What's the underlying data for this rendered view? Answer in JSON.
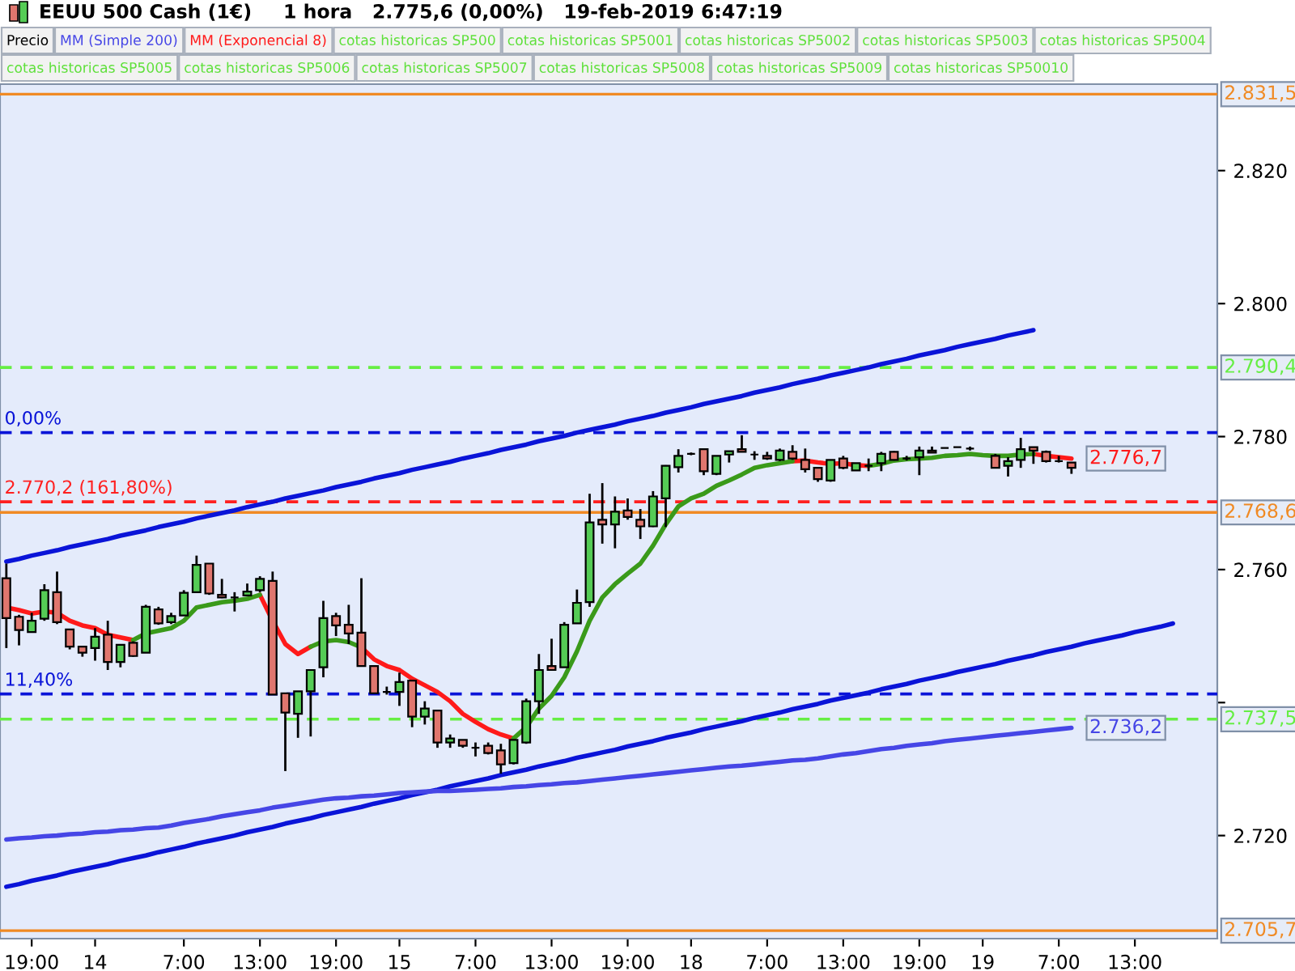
{
  "chart_data": {
    "type": "candlestick",
    "title": "EEUU 500 Cash (1€)",
    "subtitle": "1 hora   2.775,6 (0,00%)   19-feb-2019 6:47:19",
    "legend": "top",
    "categories": [
      null,
      null,
      "19:00",
      null,
      null,
      null,
      null,
      "14",
      null,
      null,
      null,
      null,
      null,
      null,
      "7:00",
      null,
      null,
      null,
      null,
      null,
      "13:00",
      null,
      null,
      null,
      null,
      null,
      "19:00",
      null,
      null,
      null,
      null,
      "15",
      null,
      null,
      null,
      null,
      null,
      "7:00",
      null,
      null,
      null,
      null,
      null,
      "13:00",
      null,
      null,
      null,
      null,
      null,
      "19:00",
      null,
      null,
      null,
      null,
      "18",
      null,
      null,
      null,
      null,
      null,
      "7:00",
      null,
      null,
      null,
      null,
      null,
      "13:00",
      null,
      null,
      null,
      null,
      null,
      "19:00",
      null,
      null,
      null,
      null,
      "19",
      null,
      null,
      null,
      null,
      null,
      "7:00",
      null,
      null,
      null,
      null,
      null,
      "13:00",
      null,
      null,
      null,
      null,
      null,
      null
    ],
    "ylim": [
      2704.5,
      2833
    ],
    "yticks": [
      {
        "value": 2720,
        "label": "2.720"
      },
      {
        "value": 2740,
        "label": null
      },
      {
        "value": 2760,
        "label": "2.760"
      },
      {
        "value": 2780,
        "label": "2.780"
      },
      {
        "value": 2800,
        "label": "2.800"
      },
      {
        "value": 2820,
        "label": "2.820"
      }
    ],
    "series": [
      {
        "type": "line",
        "color": "#0a14d8",
        "values": [
          2761.2,
          2761.6,
          2762.1,
          2762.5,
          2762.9,
          2763.4,
          2763.8,
          2764.2,
          2764.6,
          2765.1,
          2765.5,
          2765.9,
          2766.4,
          2766.8,
          2767.2,
          2767.7,
          2768.1,
          2768.5,
          2768.9,
          2769.4,
          2769.8,
          2770.2,
          2770.7,
          2771.1,
          2771.5,
          2771.9,
          2772.4,
          2772.8,
          2773.2,
          2773.7,
          2774.1,
          2774.5,
          2775.0,
          2775.4,
          2775.8,
          2776.2,
          2776.7,
          2777.1,
          2777.5,
          2778.0,
          2778.4,
          2778.8,
          2779.3,
          2779.7,
          2780.1,
          2780.6,
          2781.0,
          2781.4,
          2781.8,
          2782.3,
          2782.7,
          2783.1,
          2783.6,
          2784.0,
          2784.4,
          2784.9,
          2785.3,
          2785.7,
          2786.1,
          2786.6,
          2787.0,
          2787.4,
          2787.9,
          2788.3,
          2788.7,
          2789.2,
          2789.6,
          2790.0,
          2790.4,
          2790.9,
          2791.3,
          2791.7,
          2792.2,
          2792.6,
          2793.0,
          2793.5,
          2793.9,
          2794.3,
          2794.7,
          2795.2,
          2795.6,
          2796.0,
          null,
          null,
          null,
          null,
          null,
          null,
          null,
          null,
          null,
          null,
          null,
          null,
          null,
          null
        ]
      },
      {
        "type": "line",
        "color": "#0a14d8",
        "values": [
          2712.3,
          2712.7,
          2713.2,
          2713.6,
          2714.0,
          2714.5,
          2714.9,
          2715.3,
          2715.7,
          2716.2,
          2716.6,
          2717.0,
          2717.5,
          2717.9,
          2718.3,
          2718.8,
          2719.2,
          2719.6,
          2720.0,
          2720.5,
          2720.9,
          2721.3,
          2721.8,
          2722.2,
          2722.6,
          2723.1,
          2723.5,
          2723.9,
          2724.3,
          2724.8,
          2725.2,
          2725.6,
          2726.1,
          2726.5,
          2726.9,
          2727.4,
          2727.8,
          2728.2,
          2728.6,
          2729.1,
          2729.5,
          2729.9,
          2730.4,
          2730.8,
          2731.2,
          2731.7,
          2732.1,
          2732.5,
          2732.9,
          2733.4,
          2733.8,
          2734.2,
          2734.7,
          2735.1,
          2735.5,
          2736.0,
          2736.4,
          2736.8,
          2737.2,
          2737.7,
          2738.1,
          2738.5,
          2739.0,
          2739.4,
          2739.8,
          2740.3,
          2740.7,
          2741.1,
          2741.5,
          2742.0,
          2742.4,
          2742.8,
          2743.3,
          2743.7,
          2744.1,
          2744.6,
          2745.0,
          2745.4,
          2745.8,
          2746.3,
          2746.7,
          2747.1,
          2747.6,
          2748.0,
          2748.4,
          2748.9,
          2749.3,
          2749.7,
          2750.1,
          2750.6,
          2751.0,
          2751.4,
          2751.9,
          null,
          null,
          null
        ]
      },
      {
        "name": "Precio",
        "color": "#000000",
        "ohlc": [
          [
            2758.7,
            2760.9,
            2748.2,
            2752.7
          ],
          [
            2752.9,
            2753.2,
            2748.6,
            2750.9
          ],
          [
            2750.6,
            2753.5,
            2750.6,
            2752.3
          ],
          [
            2752.6,
            2757.8,
            2752.3,
            2756.9
          ],
          [
            2756.6,
            2759.7,
            2751.8,
            2752.1
          ],
          [
            2751.0,
            2751.0,
            2748.0,
            2748.4
          ],
          [
            2748.4,
            2748.4,
            2746.9,
            2747.5
          ],
          [
            2748.2,
            2751.2,
            2746.3,
            2749.9
          ],
          [
            2750.2,
            2752.3,
            2744.9,
            2746.1
          ],
          [
            2746.1,
            2748.7,
            2745.3,
            2748.7
          ],
          [
            2749.0,
            2749.2,
            2746.9,
            2747.0
          ],
          [
            2747.5,
            2754.7,
            2747.5,
            2754.4
          ],
          [
            2754.0,
            2754.4,
            2751.7,
            2751.9
          ],
          [
            2752.1,
            2753.5,
            2751.8,
            2753.0
          ],
          [
            2753.1,
            2756.9,
            2753.1,
            2756.5
          ],
          [
            2756.6,
            2762.1,
            2756.5,
            2760.7
          ],
          [
            2760.9,
            2760.9,
            2756.2,
            2756.4
          ],
          [
            2756.2,
            2758.6,
            2755.7,
            2755.8
          ],
          [
            2755.8,
            2756.6,
            2753.7,
            2755.8
          ],
          [
            2756.1,
            2757.9,
            2756.1,
            2756.7
          ],
          [
            2756.9,
            2759.0,
            2756.6,
            2758.6
          ],
          [
            2758.3,
            2759.7,
            2741.2,
            2741.2
          ],
          [
            2741.4,
            2741.4,
            2729.7,
            2738.5
          ],
          [
            2738.3,
            2741.7,
            2734.7,
            2741.7
          ],
          [
            2741.7,
            2744.9,
            2734.9,
            2744.9
          ],
          [
            2745.3,
            2755.3,
            2743.8,
            2752.7
          ],
          [
            2753.0,
            2753.5,
            2750.0,
            2751.6
          ],
          [
            2751.7,
            2754.7,
            2748.8,
            2750.4
          ],
          [
            2750.5,
            2758.7,
            2745.5,
            2745.5
          ],
          [
            2745.5,
            2745.5,
            2741.4,
            2741.4
          ],
          [
            2741.6,
            2742.4,
            2741.2,
            2741.6
          ],
          [
            2741.6,
            2744.5,
            2739.5,
            2743.1
          ],
          [
            2743.3,
            2743.3,
            2736.3,
            2737.9
          ],
          [
            2737.9,
            2740.2,
            2736.7,
            2739.1
          ],
          [
            2738.8,
            2738.8,
            2733.2,
            2734.0
          ],
          [
            2734.0,
            2735.2,
            2733.2,
            2734.6
          ],
          [
            2734.4,
            2734.4,
            2733.2,
            2733.5
          ],
          [
            2733.2,
            2734.0,
            2731.9,
            2733.2
          ],
          [
            2733.5,
            2734.0,
            2732.2,
            2732.4
          ],
          [
            2732.8,
            2733.8,
            2729.3,
            2730.7
          ],
          [
            2730.9,
            2734.4,
            2730.7,
            2734.4
          ],
          [
            2734.0,
            2740.6,
            2733.8,
            2740.2
          ],
          [
            2740.2,
            2747.3,
            2738.3,
            2744.9
          ],
          [
            2745.5,
            2749.6,
            2744.9,
            2744.9
          ],
          [
            2745.3,
            2752.1,
            2745.3,
            2751.7
          ],
          [
            2751.9,
            2757.0,
            2751.9,
            2755.0
          ],
          [
            2755.1,
            2771.4,
            2754.4,
            2767.1
          ],
          [
            2767.5,
            2773.0,
            2763.9,
            2766.8
          ],
          [
            2766.8,
            2771.0,
            2763.2,
            2768.7
          ],
          [
            2768.9,
            2770.7,
            2767.5,
            2767.9
          ],
          [
            2767.5,
            2769.1,
            2764.6,
            2766.5
          ],
          [
            2766.5,
            2771.8,
            2766.4,
            2771.0
          ],
          [
            2770.7,
            2775.7,
            2766.4,
            2775.6
          ],
          [
            2775.4,
            2778.1,
            2774.6,
            2777.1
          ],
          [
            2777.4,
            2777.6,
            2777.2,
            2777.4
          ],
          [
            2778.1,
            2778.1,
            2774.2,
            2774.8
          ],
          [
            2774.4,
            2777.1,
            2774.2,
            2777.1
          ],
          [
            2777.3,
            2777.8,
            2776.1,
            2777.8
          ],
          [
            2778.1,
            2780.2,
            2777.7,
            2777.7
          ],
          [
            2777.3,
            2777.8,
            2776.5,
            2777.3
          ],
          [
            2777.1,
            2777.7,
            2776.5,
            2776.7
          ],
          [
            2776.5,
            2778.2,
            2776.3,
            2777.9
          ],
          [
            2777.7,
            2778.7,
            2776.5,
            2776.7
          ],
          [
            2776.5,
            2778.2,
            2774.6,
            2775.1
          ],
          [
            2775.3,
            2775.3,
            2773.2,
            2773.6
          ],
          [
            2773.4,
            2776.5,
            2773.2,
            2776.5
          ],
          [
            2776.7,
            2777.1,
            2775.1,
            2775.3
          ],
          [
            2774.9,
            2776.0,
            2774.9,
            2776.0
          ],
          [
            2775.6,
            2776.7,
            2774.8,
            2775.6
          ],
          [
            2776.0,
            2777.7,
            2774.8,
            2777.4
          ],
          [
            2777.7,
            2777.8,
            2776.4,
            2776.5
          ],
          [
            2776.7,
            2777.1,
            2776.4,
            2776.7
          ],
          [
            2776.9,
            2778.5,
            2774.2,
            2777.9
          ],
          [
            2777.9,
            2778.5,
            2777.6,
            2777.6
          ],
          [
            2778.3,
            2778.3,
            2778.3,
            2778.3
          ],
          [
            2778.4,
            2778.4,
            2778.4,
            2778.4
          ],
          [
            2778.2,
            2778.5,
            2777.9,
            2778.2
          ],
          null,
          [
            2777.1,
            2777.4,
            2775.2,
            2775.3
          ],
          [
            2775.6,
            2776.9,
            2774.0,
            2776.3
          ],
          [
            2776.5,
            2779.8,
            2775.3,
            2778.1
          ],
          [
            2778.4,
            2778.4,
            2775.9,
            2777.9
          ],
          [
            2777.7,
            2777.9,
            2776.1,
            2776.3
          ],
          [
            2776.3,
            2777.1,
            2776.1,
            2776.3
          ],
          [
            2776.1,
            2776.1,
            2774.4,
            2775.3
          ],
          null,
          null,
          null,
          null,
          null,
          null,
          null,
          null,
          null,
          null,
          null
        ],
        "colors": [
          "#e0766e",
          "#e0766e",
          "#55cc55",
          "#55cc55",
          "#e0766e",
          "#e0766e",
          "#e0766e",
          "#55cc55",
          "#e0766e",
          "#55cc55",
          "#e0766e",
          "#55cc55",
          "#e0766e",
          "#55cc55",
          "#55cc55",
          "#55cc55",
          "#e0766e",
          "#e0766e",
          "#000000",
          "#55cc55",
          "#55cc55",
          "#e0766e",
          "#e0766e",
          "#55cc55",
          "#55cc55",
          "#55cc55",
          "#e0766e",
          "#e0766e",
          "#e0766e",
          "#e0766e",
          "#000000",
          "#55cc55",
          "#e0766e",
          "#55cc55",
          "#e0766e",
          "#55cc55",
          "#e0766e",
          "#000000",
          "#e0766e",
          "#e0766e",
          "#55cc55",
          "#55cc55",
          "#55cc55",
          "#e0766e",
          "#55cc55",
          "#55cc55",
          "#55cc55",
          "#e0766e",
          "#55cc55",
          "#e0766e",
          "#e0766e",
          "#55cc55",
          "#55cc55",
          "#55cc55",
          "#000000",
          "#e0766e",
          "#55cc55",
          "#55cc55",
          "#e0766e",
          "#000000",
          "#e0766e",
          "#55cc55",
          "#e0766e",
          "#e0766e",
          "#e0766e",
          "#55cc55",
          "#e0766e",
          "#55cc55",
          "#000000",
          "#55cc55",
          "#e0766e",
          "#000000",
          "#55cc55",
          "#e0766e",
          "#000000",
          "#000000",
          "#000000",
          null,
          "#e0766e",
          "#55cc55",
          "#55cc55",
          "#e0766e",
          "#e0766e",
          "#000000",
          "#e0766e",
          null,
          null,
          null,
          null,
          null,
          null,
          null,
          null,
          null,
          null,
          null
        ]
      },
      {
        "type": "line",
        "name": "MM (Simple 200)",
        "color": "#4646e6",
        "value_labels": [
          null,
          null,
          null,
          null,
          null,
          null,
          null,
          null,
          null,
          null,
          null,
          null,
          null,
          null,
          null,
          null,
          null,
          null,
          null,
          null,
          null,
          null,
          null,
          null,
          null,
          null,
          null,
          null,
          null,
          null,
          null,
          null,
          null,
          null,
          null,
          null,
          null,
          null,
          null,
          null,
          null,
          null,
          null,
          null,
          null,
          null,
          null,
          null,
          null,
          null,
          null,
          null,
          null,
          null,
          null,
          null,
          null,
          null,
          null,
          null,
          null,
          null,
          null,
          null,
          null,
          null,
          null,
          null,
          null,
          null,
          null,
          null,
          null,
          null,
          null,
          null,
          null,
          null,
          null,
          null,
          null,
          null,
          null,
          null,
          "2.736,2",
          null,
          null,
          null,
          null,
          null,
          null,
          null,
          null,
          null,
          null,
          null
        ],
        "values": [
          2719.4,
          2719.6,
          2719.7,
          2719.9,
          2720.0,
          2720.2,
          2720.3,
          2720.5,
          2720.6,
          2720.8,
          2720.9,
          2721.1,
          2721.2,
          2721.5,
          2721.9,
          2722.2,
          2722.5,
          2722.9,
          2723.2,
          2723.5,
          2723.8,
          2724.2,
          2724.5,
          2724.8,
          2725.1,
          2725.4,
          2725.6,
          2725.7,
          2725.9,
          2726.0,
          2726.2,
          2726.4,
          2726.5,
          2726.6,
          2726.7,
          2726.7,
          2726.8,
          2726.9,
          2727.0,
          2727.1,
          2727.3,
          2727.4,
          2727.6,
          2727.7,
          2727.9,
          2728.0,
          2728.2,
          2728.4,
          2728.6,
          2728.8,
          2729.0,
          2729.2,
          2729.4,
          2729.6,
          2729.8,
          2730.0,
          2730.2,
          2730.4,
          2730.5,
          2730.7,
          2730.9,
          2731.1,
          2731.3,
          2731.4,
          2731.6,
          2731.9,
          2732.2,
          2732.4,
          2732.7,
          2733.0,
          2733.2,
          2733.5,
          2733.7,
          2733.9,
          2734.2,
          2734.4,
          2734.6,
          2734.8,
          2735.0,
          2735.2,
          2735.4,
          2735.6,
          2735.8,
          2736.0,
          2736.2,
          null,
          null,
          null,
          null,
          null,
          null,
          null,
          null,
          null,
          null,
          null
        ]
      },
      {
        "type": "line",
        "name": "MM (Exponencial 8)",
        "color": "#ff1a1a",
        "values": [
          2754.3,
          2753.9,
          2753.4,
          2753.7,
          2753.5,
          2752.3,
          2751.6,
          2751.2,
          2750.2,
          2749.8,
          2749.4,
          null,
          null,
          null,
          null,
          null,
          null,
          null,
          null,
          null,
          2756.2,
          2752.3,
          2748.8,
          2747.3,
          2748.4,
          null,
          null,
          null,
          2748.3,
          2746.5,
          2745.5,
          2744.9,
          2743.6,
          2742.6,
          2741.6,
          2740.2,
          2738.3,
          2737.1,
          2736.0,
          2735.2,
          2734.6,
          null,
          null,
          null,
          null,
          null,
          null,
          null,
          null,
          null,
          null,
          null,
          null,
          null,
          null,
          null,
          null,
          null,
          null,
          null,
          null,
          null,
          2776.3,
          2776.4,
          2776.1,
          2775.9,
          2776.0,
          2775.7,
          2775.6,
          null,
          null,
          null,
          null,
          null,
          null,
          null,
          null,
          null,
          null,
          null,
          null,
          2777.4,
          2777.1,
          2776.9,
          2776.7,
          null,
          null,
          null,
          null,
          null,
          null,
          null,
          null,
          null,
          null,
          null
        ],
        "value_labels": [
          null,
          null,
          null,
          null,
          null,
          null,
          null,
          null,
          null,
          null,
          null,
          null,
          null,
          null,
          null,
          null,
          null,
          null,
          null,
          null,
          null,
          null,
          null,
          null,
          null,
          null,
          null,
          null,
          null,
          null,
          null,
          null,
          null,
          null,
          null,
          null,
          null,
          null,
          null,
          null,
          null,
          null,
          null,
          null,
          null,
          null,
          null,
          null,
          null,
          null,
          null,
          null,
          null,
          null,
          null,
          null,
          null,
          null,
          null,
          null,
          null,
          null,
          null,
          null,
          null,
          null,
          null,
          null,
          null,
          null,
          null,
          null,
          null,
          null,
          null,
          null,
          null,
          null,
          null,
          null,
          null,
          null,
          null,
          null,
          "2.776,7",
          null,
          null,
          null,
          null,
          null,
          null,
          null,
          null,
          null,
          null,
          null
        ]
      },
      {
        "type": "line",
        "color": "#3a9a1a",
        "values": [
          null,
          null,
          null,
          null,
          null,
          null,
          null,
          null,
          null,
          null,
          2749.4,
          2750.4,
          2750.8,
          2751.2,
          2752.3,
          2754.3,
          2754.7,
          2755.1,
          2755.3,
          2755.6,
          2756.2,
          null,
          null,
          null,
          2748.4,
          2749.2,
          2749.4,
          2749.1,
          2748.3,
          null,
          null,
          null,
          null,
          null,
          null,
          null,
          null,
          null,
          null,
          null,
          2734.6,
          2736.3,
          2739.1,
          2741.0,
          2743.8,
          2747.7,
          2752.3,
          2755.8,
          2757.8,
          2759.4,
          2760.9,
          2763.6,
          2766.8,
          2769.5,
          2770.7,
          2771.4,
          2772.6,
          2773.4,
          2774.3,
          2775.3,
          2775.7,
          2776.0,
          2776.3,
          null,
          null,
          null,
          null,
          null,
          2775.6,
          2775.9,
          2776.4,
          2776.6,
          2776.7,
          2776.8,
          2777.1,
          2777.2,
          2777.4,
          2777.2,
          2777.1,
          2777.1,
          2777.3,
          2777.4,
          null,
          null,
          null,
          null,
          null,
          null,
          null,
          null,
          null,
          null,
          null,
          null,
          null,
          null
        ]
      }
    ],
    "ref_lines": [
      {
        "axis": "y",
        "value": 2831.5,
        "label": "2.831,5",
        "color": "#f08a24",
        "line_style": "solid"
      },
      {
        "axis": "y",
        "value": 2790.4,
        "label": "2.790,4",
        "color": "#66ee44",
        "line_style": "dashed"
      },
      {
        "axis": "y",
        "value": 2780.6,
        "color": "#0a14d8",
        "line_style": "dashed"
      },
      {
        "axis": "y",
        "value": 2770.2,
        "color": "#ff2020",
        "line_style": "dashed"
      },
      {
        "axis": "y",
        "value": 2768.6,
        "label": "2.768,6",
        "color": "#f08a24",
        "line_style": "solid"
      },
      {
        "axis": "y",
        "value": 2741.3,
        "color": "#0a14d8",
        "line_style": "dashed"
      },
      {
        "axis": "y",
        "value": 2737.5,
        "label": "2.737,5",
        "color": "#66ee44",
        "line_style": "dashed"
      },
      {
        "axis": "y",
        "value": 2705.7,
        "label": "2.705,7",
        "color": "#f08a24",
        "line_style": "solid"
      }
    ],
    "annotations": [
      {
        "text": "0,00%",
        "y": 2780.6
      },
      {
        "text": "2.770,2 (161,80%)",
        "y": 2770.2
      },
      {
        "text": "11,40%",
        "y": 2741.3
      },
      "cotas historicas SP500",
      "cotas historicas SP5001",
      "cotas historicas SP5002",
      "cotas historicas SP5003",
      "cotas historicas SP5004",
      "cotas historicas SP5005",
      "cotas historicas SP5006",
      "cotas historicas SP5007",
      "cotas historicas SP5008",
      "cotas historicas SP5009",
      "cotas historicas SP50010"
    ]
  }
}
